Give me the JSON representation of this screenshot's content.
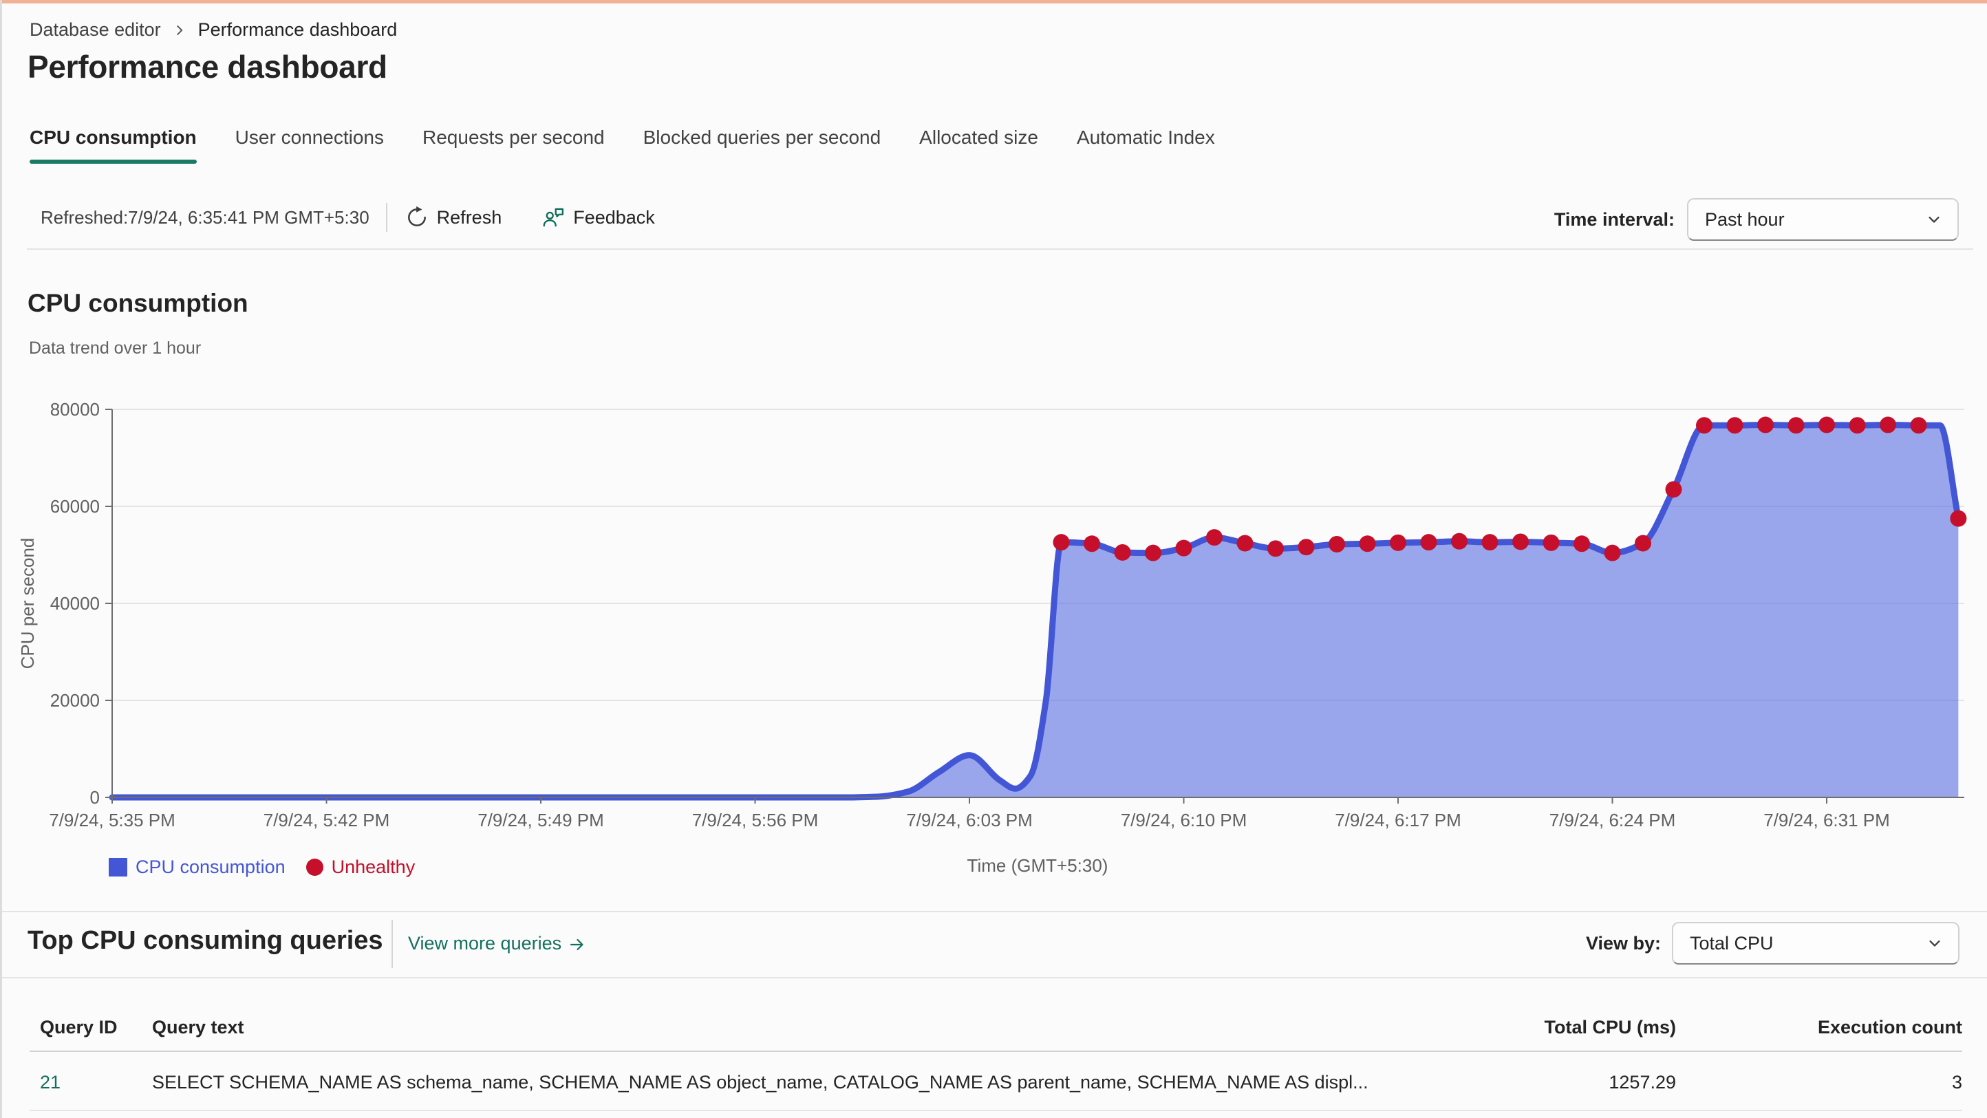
{
  "page": {
    "title": "Performance dashboard"
  },
  "breadcrumb": {
    "items": [
      "Database editor",
      "Performance dashboard"
    ]
  },
  "tabs": [
    {
      "label": "CPU consumption",
      "active": true
    },
    {
      "label": "User connections",
      "active": false
    },
    {
      "label": "Requests per second",
      "active": false
    },
    {
      "label": "Blocked queries per second",
      "active": false
    },
    {
      "label": "Allocated size",
      "active": false
    },
    {
      "label": "Automatic Index",
      "active": false
    }
  ],
  "toolbar": {
    "refreshed_text": "Refreshed:7/9/24, 6:35:41 PM GMT+5:30",
    "refresh_label": "Refresh",
    "feedback_label": "Feedback",
    "time_interval_label": "Time interval:",
    "time_interval_value": "Past hour"
  },
  "section": {
    "title": "CPU consumption",
    "subtitle": "Data trend over 1 hour"
  },
  "chart_data": {
    "type": "area",
    "title": "CPU consumption",
    "xlabel": "Time (GMT+5:30)",
    "ylabel": "CPU per second",
    "ylim": [
      0,
      80000
    ],
    "yticks": [
      0,
      20000,
      40000,
      60000,
      80000
    ],
    "grid": "horizontal",
    "x_tick_minutes": [
      0,
      7,
      14,
      21,
      28,
      35,
      42,
      49,
      56
    ],
    "x_tick_labels": [
      "7/9/24, 5:35 PM",
      "7/9/24, 5:42 PM",
      "7/9/24, 5:49 PM",
      "7/9/24, 5:56 PM",
      "7/9/24, 6:03 PM",
      "7/9/24, 6:10 PM",
      "7/9/24, 6:17 PM",
      "7/9/24, 6:24 PM",
      "7/9/24, 6:31 PM"
    ],
    "legend": [
      {
        "label": "CPU consumption",
        "color": "#4356d6",
        "shape": "square"
      },
      {
        "label": "Unhealthy",
        "color": "#c50f2b",
        "shape": "circle"
      }
    ],
    "colors": {
      "line": "#4356d6",
      "fill": "#5a6ee1",
      "fill_opacity": 0.6,
      "axis": "#6e6e6e",
      "grid_line": "#dcdcdc",
      "tick_label": "#616161",
      "unhealthy": "#c50f2b"
    },
    "series": [
      {
        "name": "CPU consumption",
        "x_unit": "minutes after 7/9/24, 5:35 PM",
        "points": [
          [
            0,
            0
          ],
          [
            5,
            0
          ],
          [
            10,
            0
          ],
          [
            15,
            0
          ],
          [
            20,
            0
          ],
          [
            23,
            0
          ],
          [
            24,
            0
          ],
          [
            25,
            150
          ],
          [
            26,
            1200
          ],
          [
            27,
            5200
          ],
          [
            28,
            8700
          ],
          [
            29,
            3500
          ],
          [
            29.5,
            1800
          ],
          [
            30,
            4500
          ],
          [
            30.5,
            20000
          ],
          [
            31,
            52600,
            1
          ],
          [
            32,
            52300,
            1
          ],
          [
            33,
            50500,
            1
          ],
          [
            34,
            50400,
            1
          ],
          [
            35,
            51400,
            1
          ],
          [
            36,
            53600,
            1
          ],
          [
            37,
            52400,
            1
          ],
          [
            38,
            51300,
            1
          ],
          [
            39,
            51600,
            1
          ],
          [
            40,
            52200,
            1
          ],
          [
            41,
            52300,
            1
          ],
          [
            42,
            52500,
            1
          ],
          [
            43,
            52600,
            1
          ],
          [
            44,
            52800,
            1
          ],
          [
            45,
            52600,
            1
          ],
          [
            46,
            52700,
            1
          ],
          [
            47,
            52500,
            1
          ],
          [
            48,
            52300,
            1
          ],
          [
            49,
            50400,
            1
          ],
          [
            50,
            52400,
            1
          ],
          [
            51,
            63500,
            1
          ],
          [
            52,
            76700,
            1
          ],
          [
            53,
            76700,
            1
          ],
          [
            54,
            76800,
            1
          ],
          [
            55,
            76700,
            1
          ],
          [
            56,
            76800,
            1
          ],
          [
            57,
            76700,
            1
          ],
          [
            58,
            76800,
            1
          ],
          [
            59,
            76700,
            1
          ],
          [
            59.7,
            76700
          ],
          [
            60.3,
            57500,
            1
          ]
        ]
      }
    ]
  },
  "queries": {
    "title": "Top CPU consuming queries",
    "view_more_label": "View more queries",
    "view_by_label": "View by:",
    "view_by_value": "Total CPU",
    "table": {
      "columns": [
        "Query ID",
        "Query text",
        "Total CPU (ms)",
        "Execution count"
      ],
      "rows": [
        {
          "query_id": "21",
          "query_text": "SELECT SCHEMA_NAME AS schema_name, SCHEMA_NAME AS object_name, CATALOG_NAME AS parent_name, SCHEMA_NAME AS displ...",
          "total_cpu_ms": "1257.29",
          "execution_count": "3"
        }
      ]
    }
  },
  "colors": {
    "accent_teal": "#13705e",
    "tab_underline": "#1a7a66",
    "top_strip": "#f0b195",
    "chart_line": "#4356d6",
    "chart_fill": "#5a6ee1",
    "unhealthy_red": "#c50f2b"
  }
}
